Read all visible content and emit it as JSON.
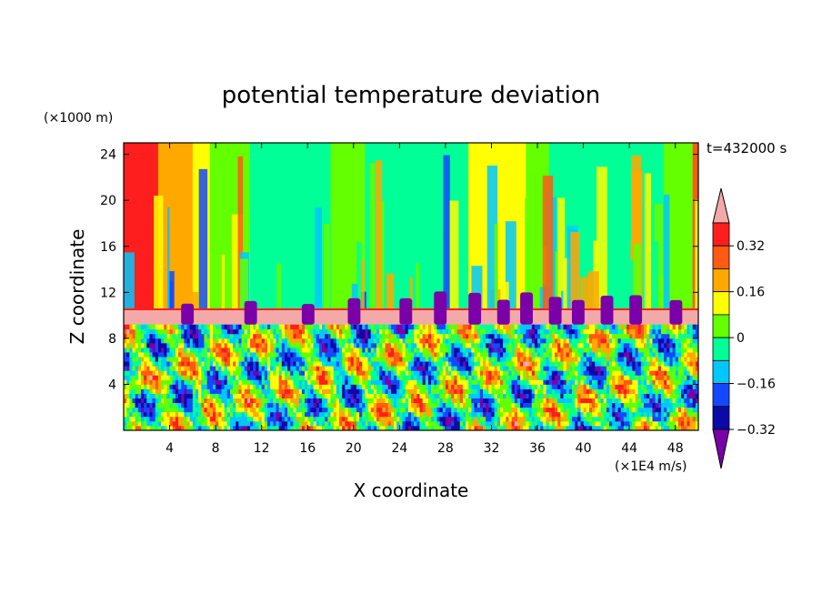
{
  "chart_data": {
    "type": "heatmap",
    "title": "potential temperature deviation",
    "time_label": "t=432000 s",
    "xlabel": "X coordinate",
    "x_unit": "(×1E4 m/s)",
    "ylabel": "Z coordinate",
    "y_unit": "(×1000 m)",
    "xlim": [
      0,
      50
    ],
    "ylim": [
      0,
      25
    ],
    "x_ticks": [
      "4",
      "8",
      "12",
      "16",
      "20",
      "24",
      "28",
      "32",
      "36",
      "40",
      "44",
      "48"
    ],
    "y_ticks": [
      "4",
      "8",
      "12",
      "16",
      "20",
      "24"
    ],
    "colorbar_ticks": [
      "0.32",
      "0.16",
      "0",
      "−0.16",
      "−0.32"
    ],
    "colorbar_levels": [
      -0.4,
      -0.32,
      -0.24,
      -0.16,
      -0.08,
      0,
      0.08,
      0.16,
      0.24,
      0.32,
      0.4
    ],
    "colors": [
      "#7a00a8",
      "#0a0aa8",
      "#1448ff",
      "#00c8ff",
      "#00ff96",
      "#64ff00",
      "#ffff00",
      "#ffa800",
      "#ff5a14",
      "#ff1e1e",
      "#f4a9a9"
    ],
    "upper_layer_columns": [
      {
        "x0": 0,
        "x1": 3,
        "v": 0.33
      },
      {
        "x0": 3,
        "x1": 6,
        "v": 0.2
      },
      {
        "x0": 6,
        "x1": 7.5,
        "v": 0.1
      },
      {
        "x0": 7.5,
        "x1": 11,
        "v": 0.05
      },
      {
        "x0": 11,
        "x1": 13,
        "v": -0.06
      },
      {
        "x0": 13,
        "x1": 18,
        "v": -0.02
      },
      {
        "x0": 18,
        "x1": 21,
        "v": 0.02
      },
      {
        "x0": 21,
        "x1": 23,
        "v": -0.06
      },
      {
        "x0": 23,
        "x1": 27,
        "v": -0.02
      },
      {
        "x0": 27,
        "x1": 30,
        "v": -0.06
      },
      {
        "x0": 30,
        "x1": 35,
        "v": 0.14
      },
      {
        "x0": 35,
        "x1": 37,
        "v": 0.02
      },
      {
        "x0": 37,
        "x1": 42,
        "v": -0.02
      },
      {
        "x0": 42,
        "x1": 47,
        "v": -0.07
      },
      {
        "x0": 47,
        "x1": 49.5,
        "v": 0.05
      },
      {
        "x0": 49.5,
        "x1": 50,
        "v": 0.3
      }
    ]
  }
}
